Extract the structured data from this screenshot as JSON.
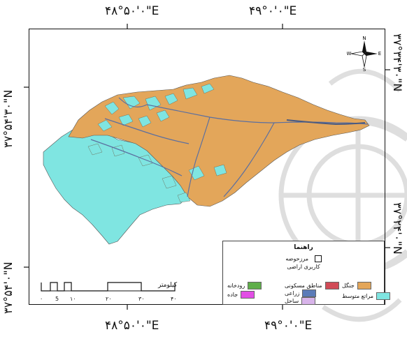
{
  "coords": {
    "top_left": "۴۸°۵۰'۰\"E",
    "top_right": "۴۹°۰'۰\"E",
    "bottom_left": "۴۸°۵۰'۰\"E",
    "bottom_right": "۴۹°۰'۰\"E",
    "left_top": "۳۷°۵۴'۳۰\"N",
    "left_bottom": "۳۷°۵۴'۰\"N",
    "right_top": "۳۷°۳۴'۳۰\"N",
    "right_bottom": "۳۷°۲۴'۰\"N"
  },
  "north_arrow": {
    "n": "N",
    "s": "S",
    "e": "E",
    "w": "W"
  },
  "legend": {
    "title": "راهنما",
    "boundary": "مرزحوضه",
    "subtitle": "کاربری اراضی",
    "items": [
      {
        "label": "جنگل",
        "color": "#e3a65a"
      },
      {
        "label": "مراتع متوسط",
        "color": "#7fe5e1"
      },
      {
        "label": "مناطق مسکونی",
        "color": "#d14b57"
      },
      {
        "label": "زراعی",
        "color": "#5b7bb8"
      },
      {
        "label": "ساحل",
        "color": "#d8b4ea"
      },
      {
        "label": "رودخانه",
        "color": "#5fae4a"
      },
      {
        "label": "جاده",
        "color": "#e24ee5"
      }
    ]
  },
  "scale": {
    "unit": "کیلومتر",
    "ticks": [
      "۰",
      "5",
      "۱۰",
      "۲۰",
      "۳۰",
      "۴۰"
    ]
  }
}
